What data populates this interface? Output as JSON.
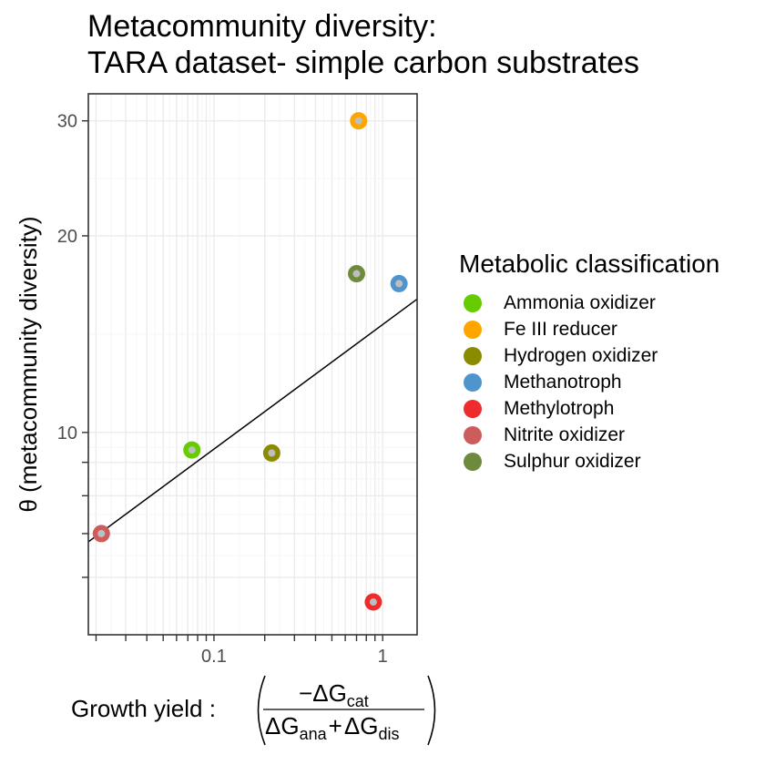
{
  "chart_data": {
    "type": "scatter",
    "title": [
      "Metacommunity diversity:",
      "TARA dataset- simple carbon substrates"
    ],
    "ylabel": "θ (metacommunity diversity)",
    "xlabel": {
      "prefix": "Growth yield :",
      "numerator_sign": "−",
      "delta": "Δ",
      "G": "G",
      "plus": "+",
      "sub_cat": "cat",
      "sub_ana": "ana",
      "sub_dis": "dis"
    },
    "x_scale": "log",
    "y_scale": "log",
    "xlim": [
      0.018,
      1.6
    ],
    "ylim": [
      4.9,
      33
    ],
    "x_ticks": [
      {
        "value": 0.02,
        "label": ""
      },
      {
        "value": 0.03,
        "label": ""
      },
      {
        "value": 0.04,
        "label": ""
      },
      {
        "value": 0.05,
        "label": ""
      },
      {
        "value": 0.06,
        "label": ""
      },
      {
        "value": 0.07,
        "label": ""
      },
      {
        "value": 0.08,
        "label": ""
      },
      {
        "value": 0.09,
        "label": ""
      },
      {
        "value": 0.1,
        "label": "0.1"
      },
      {
        "value": 0.2,
        "label": ""
      },
      {
        "value": 0.3,
        "label": ""
      },
      {
        "value": 0.4,
        "label": ""
      },
      {
        "value": 0.5,
        "label": ""
      },
      {
        "value": 0.6,
        "label": ""
      },
      {
        "value": 0.7,
        "label": ""
      },
      {
        "value": 0.8,
        "label": ""
      },
      {
        "value": 0.9,
        "label": ""
      },
      {
        "value": 1,
        "label": "1"
      }
    ],
    "y_ticks": [
      {
        "value": 6,
        "label": ""
      },
      {
        "value": 7,
        "label": ""
      },
      {
        "value": 8,
        "label": ""
      },
      {
        "value": 9,
        "label": ""
      },
      {
        "value": 10,
        "label": "10"
      },
      {
        "value": 20,
        "label": "20"
      },
      {
        "value": 30,
        "label": "30"
      }
    ],
    "grid": true,
    "legend": {
      "title": "Metabolic classification",
      "position": "right",
      "items": [
        {
          "name": "Ammonia oxidizer",
          "color": "#66cc00"
        },
        {
          "name": "Fe III reducer",
          "color": "#ffa500"
        },
        {
          "name": "Hydrogen oxidizer",
          "color": "#8b8b00"
        },
        {
          "name": "Methanotroph",
          "color": "#4f94cd"
        },
        {
          "name": "Methylotroph",
          "color": "#ee2c2c"
        },
        {
          "name": "Nitrite oxidizer",
          "color": "#cd5c5c"
        },
        {
          "name": "Sulphur oxidizer",
          "color": "#6e8b3d"
        }
      ]
    },
    "points": [
      {
        "x": 0.0215,
        "y": 7.0,
        "class": "Nitrite oxidizer"
      },
      {
        "x": 0.074,
        "y": 9.4,
        "class": "Ammonia oxidizer"
      },
      {
        "x": 0.22,
        "y": 9.3,
        "class": "Hydrogen oxidizer"
      },
      {
        "x": 0.7,
        "y": 17.5,
        "class": "Sulphur oxidizer"
      },
      {
        "x": 0.72,
        "y": 30.0,
        "class": "Fe III reducer"
      },
      {
        "x": 1.25,
        "y": 16.9,
        "class": "Methanotroph"
      },
      {
        "x": 0.88,
        "y": 5.5,
        "class": "Methylotroph"
      }
    ],
    "fit_line": {
      "x": [
        0.018,
        1.6
      ],
      "y": [
        6.8,
        16.0
      ]
    }
  }
}
